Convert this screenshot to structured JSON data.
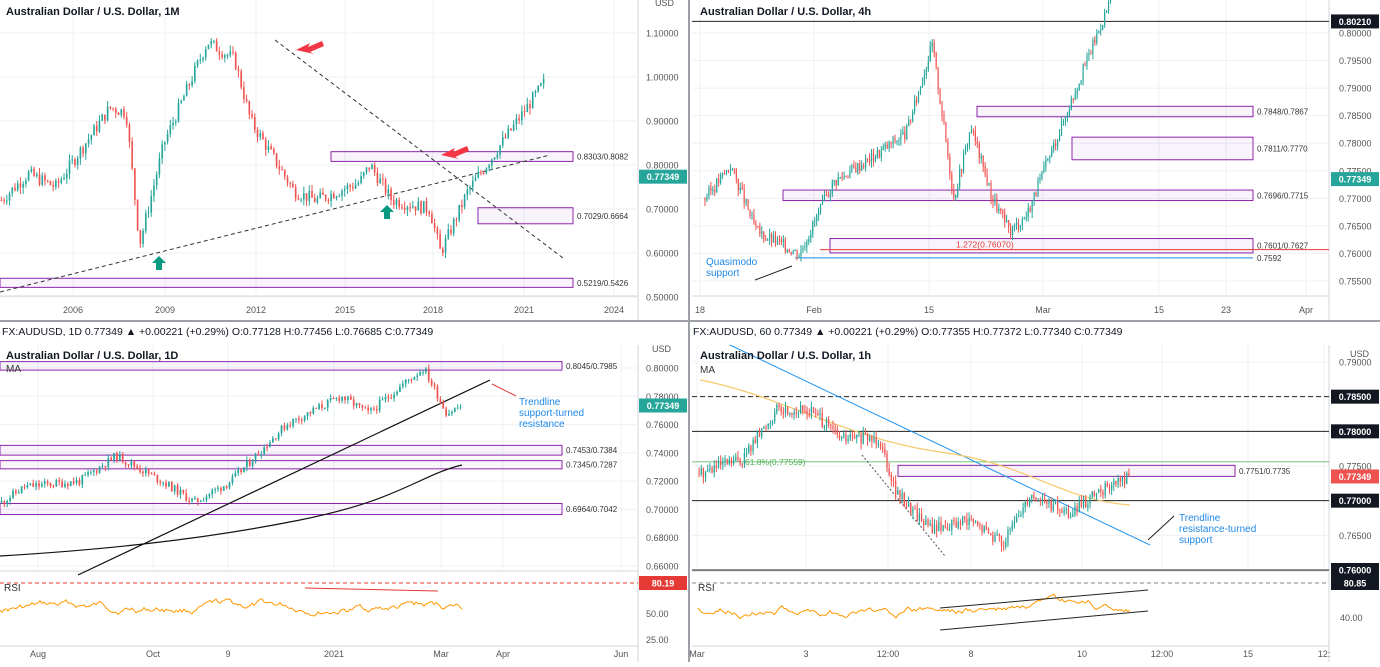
{
  "colors": {
    "background": "#ffffff",
    "chart_background": "#ffffff",
    "grid": "#eef0f4",
    "axis_text": "#555555",
    "up_candle": "#26a69a",
    "down_candle": "#ef5350",
    "zone_border": "#8e24aa",
    "zone_fill": "rgba(142,36,170,0.05)",
    "price_label": "#26a69a",
    "price_label_down": "#ef5350",
    "trendline": "#111111",
    "blue_trendline": "#2196f3",
    "arrow_red": "#f23645",
    "arrow_teal": "#089981",
    "rsi_line": "#ff9800",
    "ma_yellow": "#f5c86a",
    "fib_green": "#4caf50",
    "annotation_blue": "#1e88e5"
  },
  "panels": [
    {
      "id": "monthly",
      "title": "Australian Dollar / U.S. Dollar, 1M",
      "currency_label": "USD",
      "price_axis_labels": [
        "1.10000",
        "1.00000",
        "0.90000",
        "0.80000",
        "0.70000",
        "0.60000",
        "0.50000"
      ],
      "time_axis_labels": [
        "2006",
        "2009",
        "2012",
        "2015",
        "2018",
        "2021",
        "2024"
      ],
      "current_price": "0.77349",
      "zones": [
        {
          "label": "0.8303/0.8082"
        },
        {
          "label": "0.7029/0.6664"
        },
        {
          "label": "0.5219/0.5426"
        }
      ],
      "arrows": [
        {
          "icon": "red-arrow-icon"
        },
        {
          "icon": "red-arrow-icon"
        },
        {
          "icon": "teal-up-arrow-icon"
        },
        {
          "icon": "teal-up-arrow-icon"
        }
      ]
    },
    {
      "id": "four_hour",
      "title": "Australian Dollar / U.S. Dollar, 4h",
      "price_axis_labels": [
        "0.80000",
        "0.79500",
        "0.79000",
        "0.78500",
        "0.78000",
        "0.77500",
        "0.77000",
        "0.76500",
        "0.76000",
        "0.75500"
      ],
      "top_price_label": "0.80210",
      "time_axis_labels": [
        "18",
        "Feb",
        "15",
        "Mar",
        "15",
        "23",
        "Apr"
      ],
      "current_price": "0.77349",
      "zones": [
        {
          "label": "0.7848/0.7867"
        },
        {
          "label": "0.7811/0.7770"
        },
        {
          "label": "0.7696/0.7715"
        },
        {
          "label": "0.7601/0.7627"
        }
      ],
      "fib_label": "1.272(0.76070)",
      "level_label": "0.7592",
      "annotation": "Quasimodo support"
    },
    {
      "id": "daily",
      "title": "Australian Dollar / U.S. Dollar, 1D",
      "header": "FX:AUDUSD, 1D  0.77349  ▲ +0.00221 (+0.29%)  O:0.77128  H:0.77456  L:0.76685  C:0.77349",
      "currency_label": "USD",
      "ma_label": "MA",
      "price_axis_labels": [
        "0.80000",
        "0.78000",
        "0.76000",
        "0.74000",
        "0.72000",
        "0.70000",
        "0.68000",
        "0.66000"
      ],
      "rsi_label": "RSI",
      "rsi_axis_labels": [
        "50.00",
        "25.00"
      ],
      "rsi_value": "80.19",
      "time_axis_labels": [
        "Aug",
        "Oct",
        "9",
        "2021",
        "Mar",
        "Apr",
        "Jun"
      ],
      "current_price": "0.77349",
      "zones": [
        {
          "label": "0.8045/0.7985"
        },
        {
          "label": "0.7453/0.7384"
        },
        {
          "label": "0.7345/0.7287"
        },
        {
          "label": "0.6964/0.7042"
        }
      ],
      "annotation": "Trendline support-turned resistance"
    },
    {
      "id": "hourly",
      "title": "Australian Dollar / U.S. Dollar, 1h",
      "header": "FX:AUDUSD, 60  0.77349  ▲ +0.00221 (+0.29%)  O:0.77355  H:0.77372  L:0.77340  C:0.77349",
      "currency_label": "USD",
      "ma_label": "MA",
      "price_axis_labels": [
        "0.79000",
        "0.78500",
        "0.78000",
        "0.77500",
        "0.77000",
        "0.76500",
        "0.76000"
      ],
      "highlighted_levels": [
        "0.78500",
        "0.78000",
        "0.77000",
        "0.76000"
      ],
      "rsi_label": "RSI",
      "rsi_axis_labels": [
        "40.00"
      ],
      "rsi_value": "80.85",
      "time_axis_labels": [
        "Mar",
        "3",
        "12:00",
        "8",
        "10",
        "12:00",
        "15",
        "12:"
      ],
      "current_price": "0.77349",
      "fib_label": "61.8%(0.77559)",
      "zones": [
        {
          "label": "0.7751/0.7735"
        }
      ],
      "annotation": "Trendline resistance-turned support"
    }
  ]
}
